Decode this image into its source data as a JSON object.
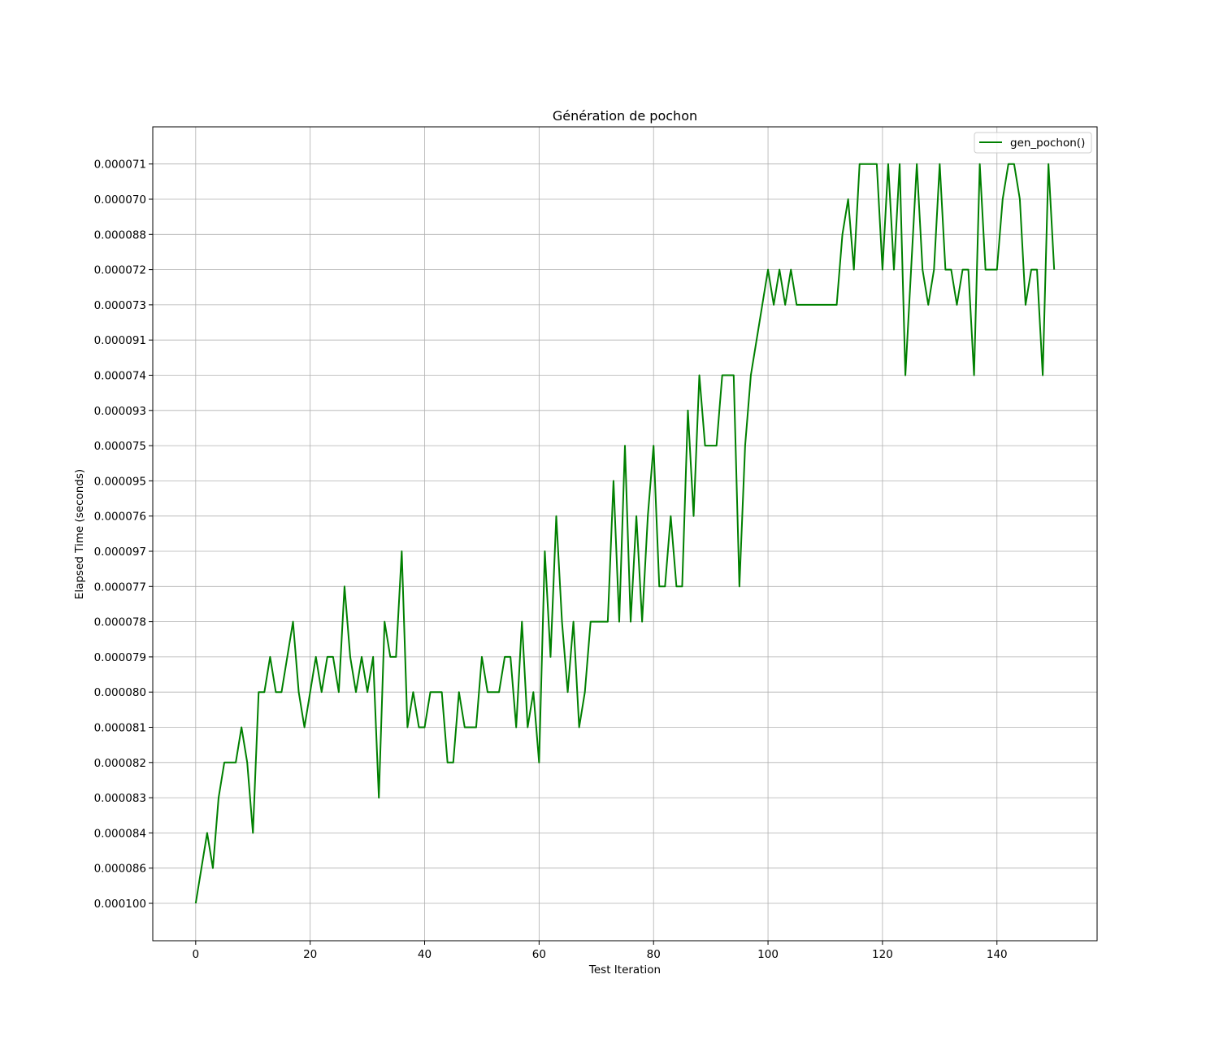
{
  "chart_data": {
    "type": "line",
    "title": "Génération de pochon",
    "xlabel": "Test Iteration",
    "ylabel": "Elapsed Time (seconds)",
    "x_ticks": [
      0,
      20,
      40,
      60,
      80,
      100,
      120,
      140
    ],
    "xlim": [
      -7.5,
      157.5
    ],
    "y_axis_kind": "categorical",
    "y_categories": [
      "0.000100",
      "0.000086",
      "0.000084",
      "0.000083",
      "0.000082",
      "0.000081",
      "0.000080",
      "0.000079",
      "0.000078",
      "0.000077",
      "0.000097",
      "0.000076",
      "0.000095",
      "0.000075",
      "0.000093",
      "0.000074",
      "0.000091",
      "0.000073",
      "0.000072",
      "0.000088",
      "0.000070",
      "0.000071"
    ],
    "grid": true,
    "legend_position": "top-right",
    "series": [
      {
        "name": "gen_pochon()",
        "color": "#008000",
        "x": [
          0,
          1,
          2,
          3,
          4,
          5,
          6,
          7,
          8,
          9,
          10,
          11,
          12,
          13,
          14,
          15,
          16,
          17,
          18,
          19,
          20,
          21,
          22,
          23,
          24,
          25,
          26,
          27,
          28,
          29,
          30,
          31,
          32,
          33,
          34,
          35,
          36,
          37,
          38,
          39,
          40,
          41,
          42,
          43,
          44,
          45,
          46,
          47,
          48,
          49,
          50,
          51,
          52,
          53,
          54,
          55,
          56,
          57,
          58,
          59,
          60,
          61,
          62,
          63,
          64,
          65,
          66,
          67,
          68,
          69,
          70,
          71,
          72,
          73,
          74,
          75,
          76,
          77,
          78,
          79,
          80,
          81,
          82,
          83,
          84,
          85,
          86,
          87,
          88,
          89,
          90,
          91,
          92,
          93,
          94,
          95,
          96,
          97,
          98,
          99,
          100,
          101,
          102,
          103,
          104,
          105,
          106,
          107,
          108,
          109,
          110,
          111,
          112,
          113,
          114,
          115,
          116,
          117,
          118,
          119,
          120,
          121,
          122,
          123,
          124,
          125,
          126,
          127,
          128,
          129,
          130,
          131,
          132,
          133,
          134,
          135,
          136,
          137,
          138,
          139,
          140,
          141,
          142,
          143,
          144,
          145,
          146,
          147,
          148,
          149,
          150
        ],
        "y": [
          "0.000100",
          "0.000086",
          "0.000084",
          "0.000086",
          "0.000083",
          "0.000082",
          "0.000082",
          "0.000082",
          "0.000081",
          "0.000082",
          "0.000084",
          "0.000080",
          "0.000080",
          "0.000079",
          "0.000080",
          "0.000080",
          "0.000079",
          "0.000078",
          "0.000080",
          "0.000081",
          "0.000080",
          "0.000079",
          "0.000080",
          "0.000079",
          "0.000079",
          "0.000080",
          "0.000077",
          "0.000079",
          "0.000080",
          "0.000079",
          "0.000080",
          "0.000079",
          "0.000083",
          "0.000078",
          "0.000079",
          "0.000079",
          "0.000097",
          "0.000081",
          "0.000080",
          "0.000081",
          "0.000081",
          "0.000080",
          "0.000080",
          "0.000080",
          "0.000082",
          "0.000082",
          "0.000080",
          "0.000081",
          "0.000081",
          "0.000081",
          "0.000079",
          "0.000080",
          "0.000080",
          "0.000080",
          "0.000079",
          "0.000079",
          "0.000081",
          "0.000078",
          "0.000081",
          "0.000080",
          "0.000082",
          "0.000097",
          "0.000079",
          "0.000076",
          "0.000078",
          "0.000080",
          "0.000078",
          "0.000081",
          "0.000080",
          "0.000078",
          "0.000078",
          "0.000078",
          "0.000078",
          "0.000095",
          "0.000078",
          "0.000075",
          "0.000078",
          "0.000076",
          "0.000078",
          "0.000076",
          "0.000075",
          "0.000077",
          "0.000077",
          "0.000076",
          "0.000077",
          "0.000077",
          "0.000093",
          "0.000076",
          "0.000074",
          "0.000075",
          "0.000075",
          "0.000075",
          "0.000074",
          "0.000074",
          "0.000074",
          "0.000077",
          "0.000075",
          "0.000074",
          "0.000091",
          "0.000073",
          "0.000072",
          "0.000073",
          "0.000072",
          "0.000073",
          "0.000072",
          "0.000073",
          "0.000073",
          "0.000073",
          "0.000073",
          "0.000073",
          "0.000073",
          "0.000073",
          "0.000073",
          "0.000088",
          "0.000070",
          "0.000072",
          "0.000071",
          "0.000071",
          "0.000071",
          "0.000071",
          "0.000072",
          "0.000071",
          "0.000072",
          "0.000071",
          "0.000074",
          "0.000072",
          "0.000071",
          "0.000072",
          "0.000073",
          "0.000072",
          "0.000071",
          "0.000072",
          "0.000072",
          "0.000073",
          "0.000072",
          "0.000072",
          "0.000074",
          "0.000071",
          "0.000072",
          "0.000072",
          "0.000072",
          "0.000070",
          "0.000071",
          "0.000071",
          "0.000070",
          "0.000073",
          "0.000072",
          "0.000072",
          "0.000074",
          "0.000071",
          "0.000072"
        ]
      }
    ]
  }
}
